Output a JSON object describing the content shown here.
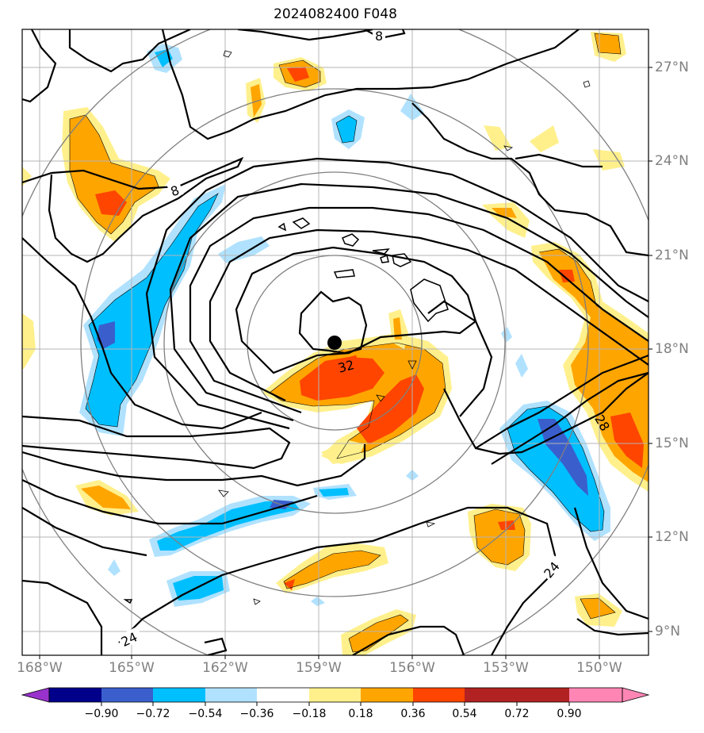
{
  "title": "2024082400 F048",
  "lat_labels": [
    "27°N",
    "24°N",
    "21°N",
    "18°N",
    "15°N",
    "12°N",
    "9°N"
  ],
  "lon_labels": [
    "168°W",
    "165°W",
    "162°W",
    "159°W",
    "156°W",
    "153°W",
    "150°W"
  ],
  "contour_labels": [
    "8",
    "8",
    "32",
    "28",
    "24",
    "24"
  ],
  "colorbar": {
    "ticks": [
      "−0.90",
      "−0.72",
      "−0.54",
      "−0.36",
      "−0.18",
      "0.18",
      "0.36",
      "0.54",
      "0.72",
      "0.90"
    ],
    "colors": [
      "#9932cc",
      "#00008b",
      "#3a5fcd",
      "#00bfff",
      "#b0e2ff",
      "#ffffff",
      "#fff08c",
      "#ffa500",
      "#ff4500",
      "#b22222",
      "#ff86b4"
    ]
  },
  "storm_marker": "storm-center"
}
